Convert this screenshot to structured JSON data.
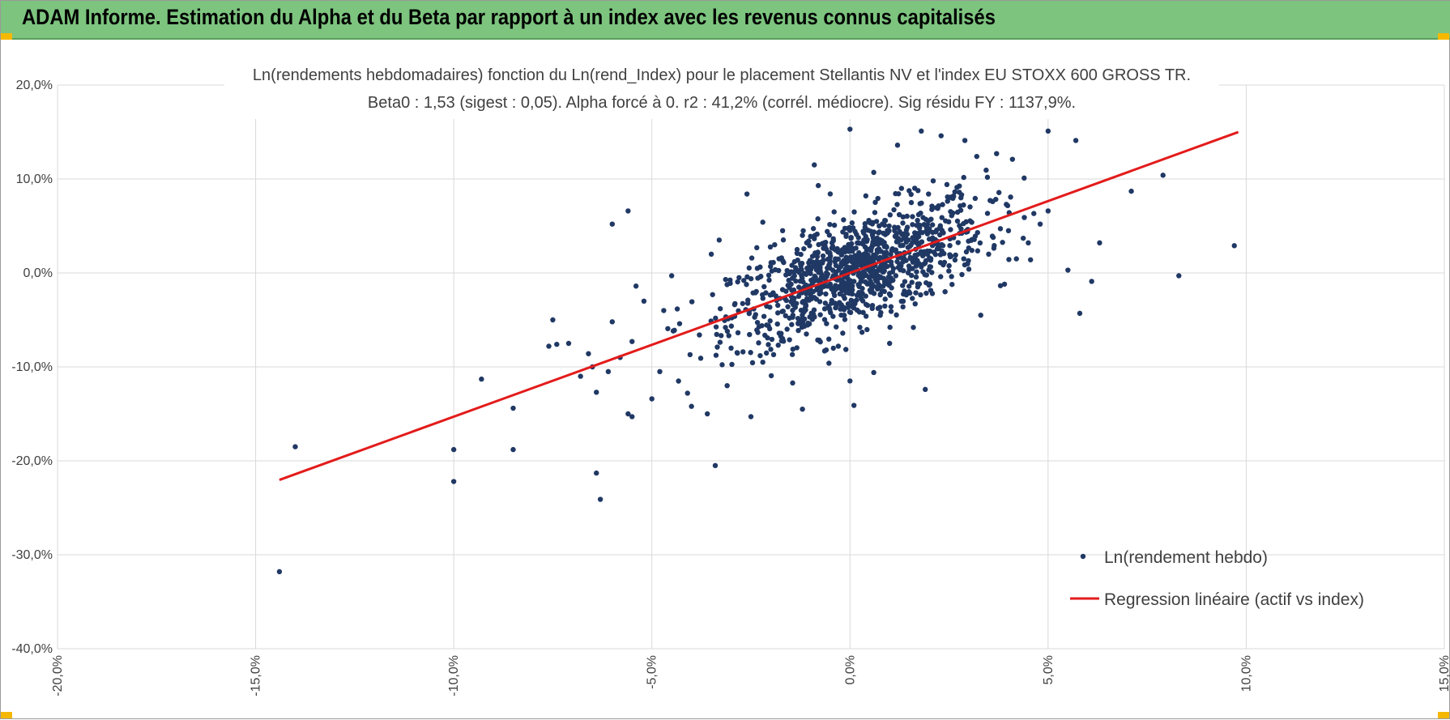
{
  "banner": {
    "title": "ADAM Informe. Estimation du Alpha et du Beta par rapport à un index avec les revenus connus capitalisés"
  },
  "colors": {
    "banner": "#7dc47f",
    "points": "#203864",
    "regression": "#e31b1b",
    "gridline": "#d9d9d9",
    "corner_accent": "#f5b800"
  },
  "chart_data": {
    "type": "scatter",
    "title": "Ln(rendements hebdomadaires) fonction du Ln(rend_Index) pour le placement Stellantis NV et l'index EU STOXX 600 GROSS TR.",
    "subtitle": "Beta0 : 1,53 (sigest : 0,05). Alpha forcé à 0. r2 : 41,2% (corrél. médiocre). Sig résidu FY : 1137,9%.",
    "xlabel": "",
    "ylabel": "",
    "xlim": [
      -0.2,
      0.15
    ],
    "ylim": [
      -0.4,
      0.2
    ],
    "x_ticks": [
      -0.2,
      -0.15,
      -0.1,
      -0.05,
      0.0,
      0.05,
      0.1,
      0.15
    ],
    "x_tick_labels": [
      "-20,0%",
      "-15,0%",
      "-10,0%",
      "-5,0%",
      "0,0%",
      "5,0%",
      "10,0%",
      "15,0%"
    ],
    "y_ticks": [
      0.2,
      0.1,
      0.0,
      -0.1,
      -0.2,
      -0.3,
      -0.4
    ],
    "y_tick_labels": [
      "20,0%",
      "10,0%",
      "0,0%",
      "-10,0%",
      "-20,0%",
      "-30,0%",
      "-40,0%"
    ],
    "grid": true,
    "legend_position": "bottom-right",
    "series": [
      {
        "name": "Ln(rendement hebdo)",
        "kind": "scatter",
        "points": [
          [
            -0.144,
            -0.318
          ],
          [
            -0.14,
            -0.185
          ],
          [
            -0.1,
            -0.188
          ],
          [
            -0.1,
            -0.222
          ],
          [
            -0.093,
            -0.113
          ],
          [
            -0.085,
            -0.188
          ],
          [
            -0.085,
            -0.144
          ],
          [
            -0.075,
            -0.05
          ],
          [
            -0.076,
            -0.078
          ],
          [
            -0.074,
            -0.076
          ],
          [
            -0.071,
            -0.075
          ],
          [
            -0.066,
            -0.086
          ],
          [
            -0.065,
            -0.1
          ],
          [
            -0.064,
            -0.127
          ],
          [
            -0.064,
            -0.213
          ],
          [
            -0.063,
            -0.241
          ],
          [
            -0.06,
            0.052
          ],
          [
            -0.06,
            -0.052
          ],
          [
            -0.056,
            0.066
          ],
          [
            -0.055,
            -0.073
          ],
          [
            -0.054,
            -0.014
          ],
          [
            -0.056,
            -0.15
          ],
          [
            -0.055,
            -0.153
          ],
          [
            -0.05,
            -0.134
          ],
          [
            -0.048,
            -0.105
          ],
          [
            -0.045,
            -0.003
          ],
          [
            -0.041,
            -0.128
          ],
          [
            -0.04,
            -0.142
          ],
          [
            -0.036,
            -0.15
          ],
          [
            -0.034,
            -0.205
          ],
          [
            -0.033,
            0.035
          ],
          [
            -0.031,
            -0.12
          ],
          [
            -0.026,
            0.084
          ],
          [
            -0.025,
            -0.153
          ],
          [
            -0.019,
            0.03
          ],
          [
            -0.014,
            0.012
          ],
          [
            -0.012,
            -0.145
          ],
          [
            -0.009,
            0.115
          ],
          [
            -0.008,
            0.093
          ],
          [
            0.0,
            0.153
          ],
          [
            0.0,
            -0.115
          ],
          [
            0.001,
            -0.141
          ],
          [
            0.006,
            0.107
          ],
          [
            0.012,
            0.136
          ],
          [
            0.018,
            0.151
          ],
          [
            0.019,
            -0.124
          ],
          [
            0.023,
            0.146
          ],
          [
            0.029,
            0.141
          ],
          [
            0.032,
            0.124
          ],
          [
            0.037,
            0.127
          ],
          [
            0.041,
            0.121
          ],
          [
            0.05,
            0.151
          ],
          [
            0.055,
            0.003
          ],
          [
            0.057,
            0.141
          ],
          [
            0.058,
            -0.043
          ],
          [
            0.061,
            -0.009
          ],
          [
            0.063,
            0.032
          ],
          [
            0.071,
            0.087
          ],
          [
            0.079,
            0.104
          ],
          [
            0.083,
            -0.003
          ],
          [
            0.097,
            0.029
          ],
          [
            0.036,
            0.076
          ],
          [
            0.044,
            0.059
          ],
          [
            0.05,
            0.066
          ],
          [
            0.048,
            0.052
          ],
          [
            0.042,
            0.015
          ],
          [
            0.039,
            -0.012
          ],
          [
            0.033,
            -0.045
          ],
          [
            0.027,
            0.091
          ],
          [
            0.024,
            -0.02
          ],
          [
            0.016,
            -0.058
          ],
          [
            0.01,
            -0.075
          ],
          [
            0.006,
            -0.106
          ],
          [
            -0.006,
            -0.082
          ],
          [
            -0.011,
            -0.065
          ],
          [
            -0.017,
            -0.07
          ],
          [
            -0.022,
            -0.095
          ],
          [
            -0.027,
            -0.084
          ],
          [
            -0.03,
            -0.08
          ],
          [
            -0.038,
            -0.066
          ],
          [
            -0.043,
            -0.054
          ],
          [
            -0.047,
            -0.04
          ],
          [
            -0.052,
            -0.03
          ],
          [
            -0.058,
            -0.09
          ],
          [
            -0.061,
            -0.105
          ],
          [
            -0.068,
            -0.11
          ],
          [
            -0.035,
            0.02
          ],
          [
            -0.028,
            -0.005
          ],
          [
            -0.022,
            0.054
          ],
          [
            -0.017,
            0.045
          ],
          [
            -0.012,
            0.04
          ],
          [
            -0.004,
            0.065
          ],
          [
            0.004,
            0.082
          ],
          [
            0.013,
            0.09
          ],
          [
            0.021,
            0.098
          ],
          [
            0.028,
            0.08
          ],
          [
            0.035,
            0.02
          ],
          [
            0.04,
            0.045
          ],
          [
            0.045,
            0.032
          ],
          [
            0.03,
            0.004
          ]
        ]
      },
      {
        "name": "Regression linéaire (actif vs index)",
        "kind": "line",
        "beta": 1.53,
        "x_range": [
          -0.144,
          0.098
        ]
      }
    ]
  }
}
